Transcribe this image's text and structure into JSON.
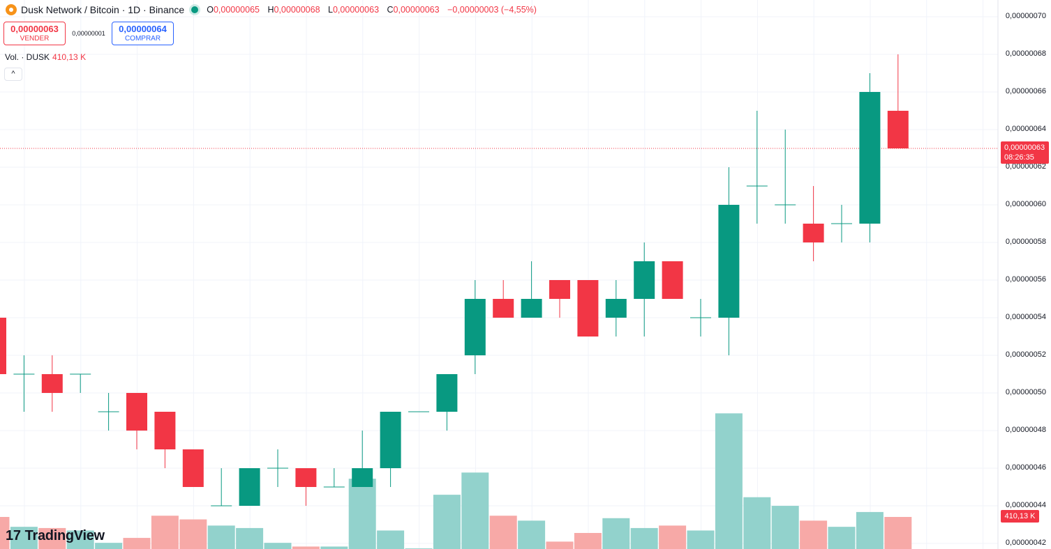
{
  "legend": {
    "title": "Dusk Network / Bitcoin · 1D · Binance",
    "o_label": "O",
    "o_value": "0,00000065",
    "h_label": "H",
    "h_value": "0,00000068",
    "l_label": "L",
    "l_value": "0,00000063",
    "c_label": "C",
    "c_value": "0,00000063",
    "change": "−0,00000003 (−4,55%)"
  },
  "trade": {
    "sell_price": "0,00000063",
    "sell_label": "VENDER",
    "spread": "0,00000001",
    "buy_price": "0,00000064",
    "buy_label": "COMPRAR"
  },
  "volume_legend": {
    "label": "Vol. · DUSK",
    "value": "410,13 K"
  },
  "collapse_icon": "^",
  "price_tag": {
    "price": "0,00000063",
    "countdown": "08:26:35"
  },
  "volume_tag": "410,13 K",
  "logo": {
    "mark": "17",
    "text": "TradingView"
  },
  "colors": {
    "up": "#089981",
    "down": "#f23645",
    "vol_up": "#92d2cc",
    "vol_down": "#f7a9a7"
  },
  "chart_data": {
    "type": "candlestick",
    "y_tick_labels": [
      "0,00000070",
      "0,00000068",
      "0,00000066",
      "0,00000064",
      "0,00000062",
      "0,00000060",
      "0,00000058",
      "0,00000056",
      "0,00000054",
      "0,00000052",
      "0,00000050",
      "0,00000048",
      "0,00000046",
      "0,00000044",
      "0,00000042"
    ],
    "ylim": [
      4.2e-07,
      7e-07
    ],
    "last_price": 6.3e-07,
    "candles": [
      {
        "o": 54,
        "h": 54,
        "l": 51,
        "c": 51,
        "v": 26
      },
      {
        "o": 51,
        "h": 52,
        "l": 49,
        "c": 51,
        "v": 18
      },
      {
        "o": 51,
        "h": 52,
        "l": 49,
        "c": 50,
        "v": 17
      },
      {
        "o": 51,
        "h": 51,
        "l": 50,
        "c": 51,
        "v": 15
      },
      {
        "o": 49,
        "h": 50,
        "l": 48,
        "c": 49,
        "v": 5
      },
      {
        "o": 50,
        "h": 50,
        "l": 47,
        "c": 48,
        "v": 9
      },
      {
        "o": 49,
        "h": 49,
        "l": 46,
        "c": 47,
        "v": 27
      },
      {
        "o": 47,
        "h": 47,
        "l": 45,
        "c": 45,
        "v": 24
      },
      {
        "o": 44,
        "h": 46,
        "l": 44,
        "c": 44,
        "v": 19
      },
      {
        "o": 44,
        "h": 46,
        "l": 44,
        "c": 46,
        "v": 17
      },
      {
        "o": 46,
        "h": 47,
        "l": 45,
        "c": 46,
        "v": 5
      },
      {
        "o": 46,
        "h": 46,
        "l": 44,
        "c": 45,
        "v": 2
      },
      {
        "o": 45,
        "h": 46,
        "l": 45,
        "c": 45,
        "v": 2
      },
      {
        "o": 45,
        "h": 48,
        "l": 45,
        "c": 46,
        "v": 57
      },
      {
        "o": 46,
        "h": 49,
        "l": 45,
        "c": 49,
        "v": 15
      },
      {
        "o": 49,
        "h": 49,
        "l": 49,
        "c": 49,
        "v": 0.5
      },
      {
        "o": 49,
        "h": 51,
        "l": 48,
        "c": 51,
        "v": 44
      },
      {
        "o": 52,
        "h": 56,
        "l": 51,
        "c": 55,
        "v": 62
      },
      {
        "o": 55,
        "h": 56,
        "l": 54,
        "c": 54,
        "v": 27
      },
      {
        "o": 54,
        "h": 57,
        "l": 54,
        "c": 55,
        "v": 23
      },
      {
        "o": 56,
        "h": 56,
        "l": 54,
        "c": 55,
        "v": 6
      },
      {
        "o": 56,
        "h": 56,
        "l": 53,
        "c": 53,
        "v": 13
      },
      {
        "o": 54,
        "h": 56,
        "l": 53,
        "c": 55,
        "v": 25
      },
      {
        "o": 55,
        "h": 58,
        "l": 53,
        "c": 57,
        "v": 17
      },
      {
        "o": 57,
        "h": 57,
        "l": 55,
        "c": 55,
        "v": 19
      },
      {
        "o": 54,
        "h": 55,
        "l": 53,
        "c": 54,
        "v": 15
      },
      {
        "o": 54,
        "h": 62,
        "l": 52,
        "c": 60,
        "v": 110
      },
      {
        "o": 61,
        "h": 65,
        "l": 59,
        "c": 61,
        "v": 42
      },
      {
        "o": 60,
        "h": 64,
        "l": 59,
        "c": 60,
        "v": 35
      },
      {
        "o": 59,
        "h": 61,
        "l": 57,
        "c": 58,
        "v": 23
      },
      {
        "o": 59,
        "h": 60,
        "l": 58,
        "c": 59,
        "v": 18
      },
      {
        "o": 59,
        "h": 67,
        "l": 58,
        "c": 66,
        "v": 30
      },
      {
        "o": 65,
        "h": 68,
        "l": 63,
        "c": 63,
        "v": 26
      }
    ],
    "units_note": "prices in units of 0,00000001 BTC"
  }
}
